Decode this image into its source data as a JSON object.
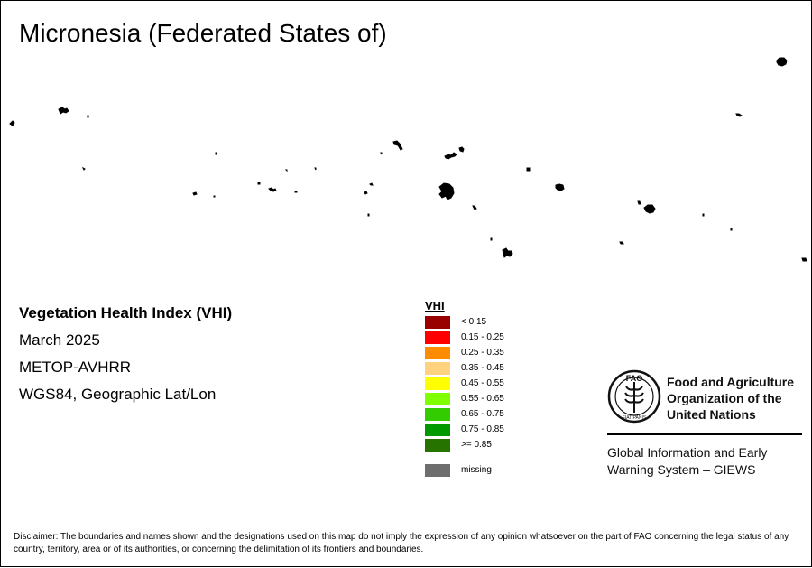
{
  "map": {
    "title": "Micronesia (Federated States of)",
    "islands": [
      {
        "id": "island-1"
      },
      {
        "id": "island-2"
      },
      {
        "id": "island-3"
      },
      {
        "id": "island-4"
      },
      {
        "id": "island-5"
      },
      {
        "id": "island-6"
      },
      {
        "id": "island-7"
      },
      {
        "id": "island-8"
      },
      {
        "id": "island-9"
      },
      {
        "id": "island-10"
      },
      {
        "id": "island-11"
      },
      {
        "id": "island-12"
      },
      {
        "id": "island-13"
      },
      {
        "id": "island-14"
      },
      {
        "id": "island-15"
      },
      {
        "id": "island-16"
      },
      {
        "id": "island-17"
      },
      {
        "id": "island-18"
      },
      {
        "id": "island-19"
      },
      {
        "id": "island-20"
      },
      {
        "id": "island-21"
      },
      {
        "id": "island-22"
      },
      {
        "id": "island-23"
      },
      {
        "id": "island-24"
      },
      {
        "id": "island-25"
      },
      {
        "id": "island-26"
      },
      {
        "id": "island-27"
      },
      {
        "id": "island-28"
      },
      {
        "id": "island-29"
      },
      {
        "id": "island-30"
      }
    ]
  },
  "info": {
    "index_name": "Vegetation Health Index (VHI)",
    "period": "March 2025",
    "sensor": "METOP-AVHRR",
    "projection": "WGS84, Geographic Lat/Lon"
  },
  "legend": {
    "title": "VHI",
    "classes": [
      {
        "label": "< 0.15",
        "color": "#990000"
      },
      {
        "label": "0.15 - 0.25",
        "color": "#ff0000"
      },
      {
        "label": "0.25 - 0.35",
        "color": "#ff8c00"
      },
      {
        "label": "0.35 - 0.45",
        "color": "#ffd27f"
      },
      {
        "label": "0.45 - 0.55",
        "color": "#ffff00"
      },
      {
        "label": "0.55 - 0.65",
        "color": "#80ff00"
      },
      {
        "label": "0.65 - 0.75",
        "color": "#33cc00"
      },
      {
        "label": "0.75 - 0.85",
        "color": "#009900"
      },
      {
        "label": ">= 0.85",
        "color": "#267300"
      }
    ],
    "missing": {
      "label": "missing",
      "color": "#6e6e6e"
    }
  },
  "organization": {
    "logo_icon": "fao-logo-icon",
    "logo_top_letters": "FAO",
    "logo_bottom_text": "FIAT PANIS",
    "name_line1": "Food and Agriculture",
    "name_line2": "Organization of the",
    "name_line3": "United Nations",
    "system_line1": "Global Information and Early",
    "system_line2": "Warning System – GIEWS"
  },
  "disclaimer": "Disclaimer: The boundaries and names shown and the designations used on this map do not imply the expression of any opinion whatsoever on the part of FAO concerning the legal status of any country, territory, area or of its authorities, or concerning the delimitation of its frontiers and boundaries."
}
